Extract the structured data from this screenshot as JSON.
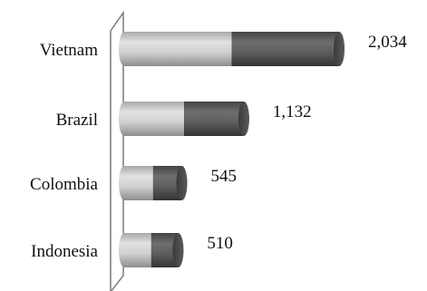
{
  "chart_data": {
    "type": "bar",
    "orientation": "horizontal",
    "style": "3d-cylinder",
    "categories": [
      "Vietnam",
      "Brazil",
      "Colombia",
      "Indonesia"
    ],
    "values": [
      2034,
      1132,
      545,
      510
    ],
    "value_labels": [
      "2,034",
      "1,132",
      "545",
      "510"
    ],
    "xlim": [
      0,
      2034
    ],
    "grid": false,
    "legend": "none",
    "colors": {
      "bar_left_light": "#c4c4c4",
      "bar_right_dark": "#5c5c5c",
      "axis_wall": "#777777"
    }
  }
}
